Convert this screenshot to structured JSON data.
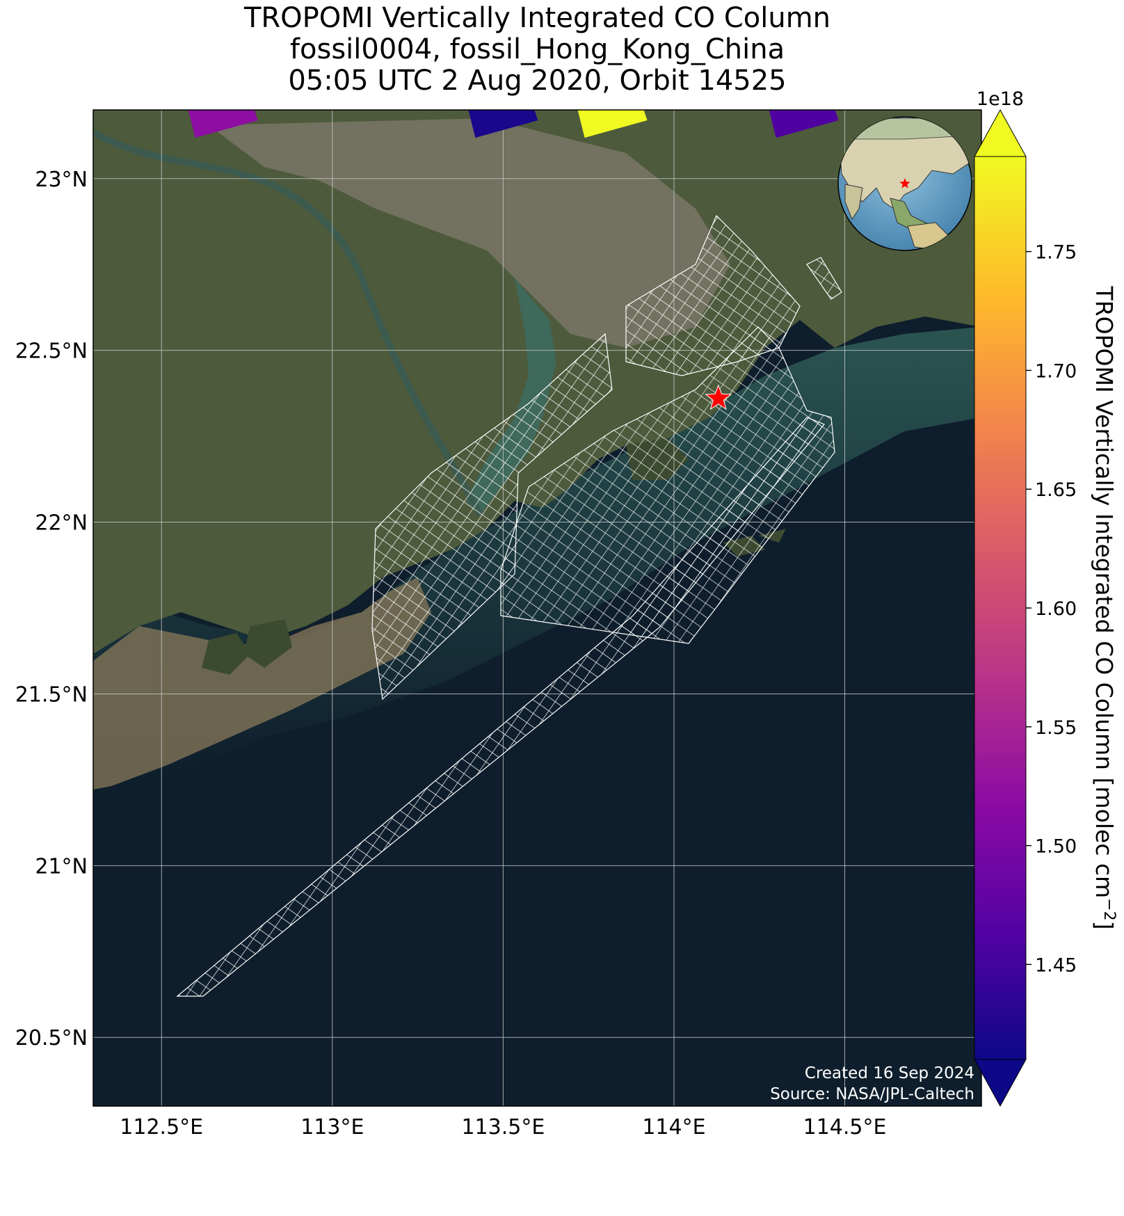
{
  "title_lines": [
    "TROPOMI Vertically Integrated CO Column",
    "fossil0004, fossil_Hong_Kong_China",
    "05:05 UTC 2 Aug 2020, Orbit 14525"
  ],
  "map": {
    "lon_range": [
      112.3,
      114.9
    ],
    "lat_range": [
      20.3,
      23.2
    ],
    "lon_ticks": [
      112.5,
      113.0,
      113.5,
      114.0,
      114.5
    ],
    "lon_tick_labels": [
      "112.5°E",
      "113°E",
      "113.5°E",
      "114°E",
      "114.5°E"
    ],
    "lat_ticks": [
      20.5,
      21.0,
      21.5,
      22.0,
      22.5,
      23.0
    ],
    "lat_tick_labels": [
      "20.5°N",
      "21°N",
      "21.5°N",
      "22°N",
      "22.5°N",
      "23°N"
    ],
    "target_site": {
      "lon": 114.13,
      "lat": 22.36,
      "icon": "star-icon",
      "color": "#ff0000"
    },
    "colors": {
      "land": "#4a5a3a",
      "urban": "#7d7a6a",
      "sea": "#0e1e2c",
      "muddy_water": "#8a7a5a",
      "grid": "#cccccc",
      "footprint": "#ffffff"
    }
  },
  "colorbar": {
    "label_main": "TROPOMI Vertically Integrated CO Column [molec cm",
    "label_sup": "−2",
    "label_end": "]",
    "multiplier": "1e18",
    "colormap": "plasma",
    "vmin": 1.41,
    "vmax": 1.79,
    "ticks": [
      1.45,
      1.5,
      1.55,
      1.6,
      1.65,
      1.7,
      1.75
    ],
    "tick_labels": [
      "1.45",
      "1.50",
      "1.55",
      "1.60",
      "1.65",
      "1.70",
      "1.75"
    ],
    "extend": "both"
  },
  "colored_pixels_top": [
    {
      "lon": 112.68,
      "value": 1.52
    },
    {
      "lon": 113.5,
      "value": 1.42
    },
    {
      "lon": 113.82,
      "value": 1.79
    },
    {
      "lon": 114.38,
      "value": 1.46
    }
  ],
  "inset_globe": {
    "marker_icon": "star-icon",
    "marker_color": "#ff0000"
  },
  "credits": {
    "created": "Created 16 Sep 2024",
    "source": "Source: NASA/JPL-Caltech"
  }
}
